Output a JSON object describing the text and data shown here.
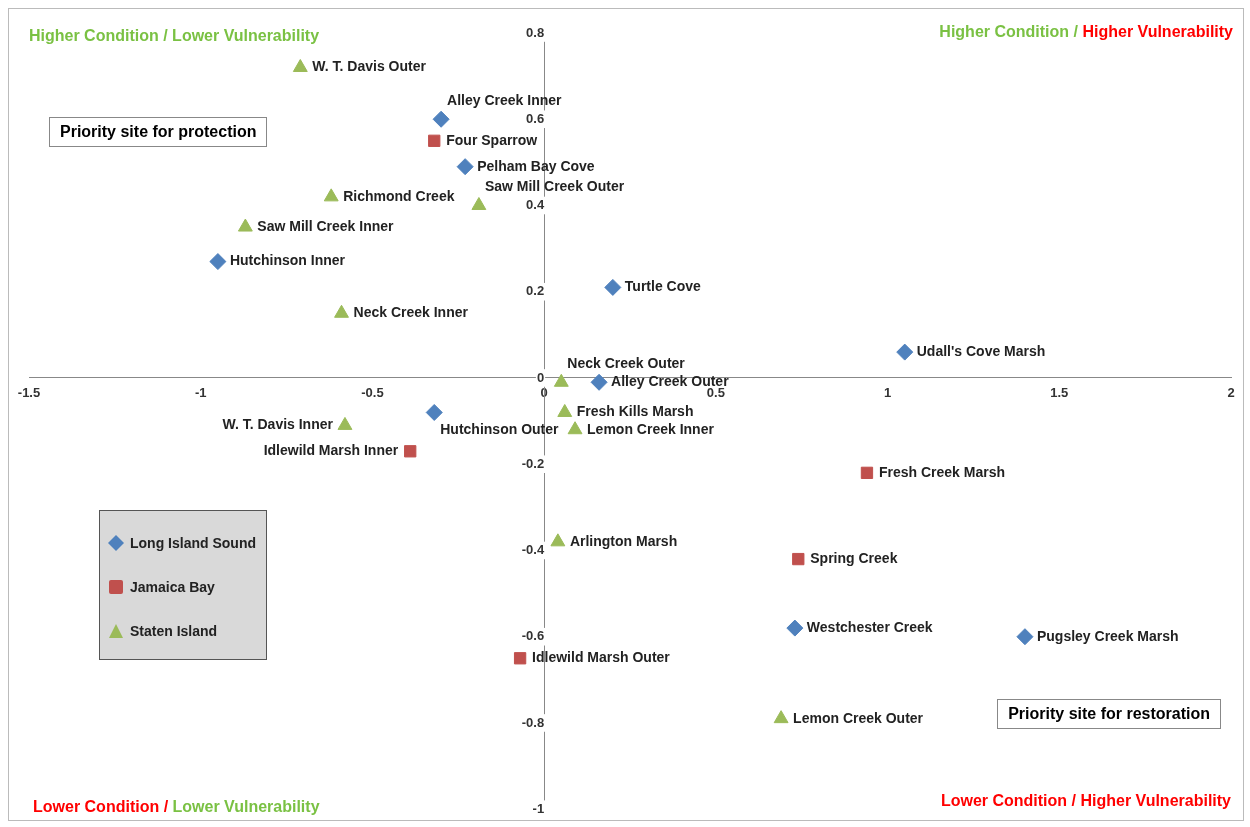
{
  "chart_data": {
    "type": "scatter",
    "xlim": [
      -1.5,
      2
    ],
    "ylim": [
      -1,
      0.8
    ],
    "xticks": [
      -1.5,
      -1,
      -0.5,
      0,
      0.5,
      1,
      1.5,
      2
    ],
    "yticks": [
      -1,
      -0.8,
      -0.6,
      -0.4,
      -0.2,
      0,
      0.2,
      0.4,
      0.6,
      0.8
    ],
    "grid": false,
    "legend": "bottom left",
    "annotations": [
      "Higher Condition / Lower Vulnerability",
      "Higher Condition / Higher Vulnerability",
      "Lower Condition / Lower Vulnerability",
      "Lower Condition / Higher Vulnerability",
      "Priority site for protection",
      "Priority site for restoration"
    ],
    "series": [
      {
        "name": "Long Island Sound",
        "color": "#4f81bd",
        "marker": "diamond",
        "x": [
          -0.3,
          -0.23,
          -0.95,
          0.2,
          1.05,
          0.16,
          -0.32,
          0.73,
          1.4
        ],
        "values": [
          0.6,
          0.49,
          0.27,
          0.21,
          0.06,
          -0.01,
          -0.08,
          -0.58,
          -0.6
        ],
        "value_labels": [
          "Alley Creek Inner",
          "Pelham Bay Cove",
          "Hutchinson Inner",
          "Turtle Cove",
          "Udall's Cove Marsh",
          "Alley Creek Outer",
          "Hutchinson Outer",
          "Westchester Creek",
          "Pugsley Creek Marsh"
        ]
      },
      {
        "name": "Jamaica Bay",
        "color": "#c0504d",
        "marker": "square",
        "x": [
          -0.32,
          -0.39,
          0.94,
          0.74,
          -0.07
        ],
        "values": [
          0.55,
          -0.17,
          -0.22,
          -0.42,
          -0.65
        ],
        "value_labels": [
          "Four Sparrow",
          "Idlewild Marsh Inner",
          "Fresh Creek Marsh",
          "Spring Creek",
          "Idlewild Marsh Outer"
        ]
      },
      {
        "name": "Staten Island",
        "color": "#9bbb59",
        "marker": "triangle",
        "x": [
          -0.71,
          -0.62,
          -0.19,
          -0.87,
          -0.59,
          0.05,
          0.06,
          0.09,
          -0.58,
          0.04,
          0.69
        ],
        "values": [
          0.72,
          0.42,
          0.4,
          0.35,
          0.15,
          -0.01,
          -0.08,
          -0.12,
          -0.11,
          -0.38,
          -0.79
        ],
        "value_labels": [
          "W. T. Davis Outer",
          "Richmond Creek",
          "Saw Mill Creek Outer",
          "Saw Mill Creek Inner",
          "Neck Creek Inner",
          "Neck Creek Outer",
          "Fresh Kills Marsh",
          "Lemon Creek Inner",
          "W. T. Davis Inner",
          "Arlington Marsh",
          "Lemon Creek Outer"
        ]
      }
    ]
  }
}
